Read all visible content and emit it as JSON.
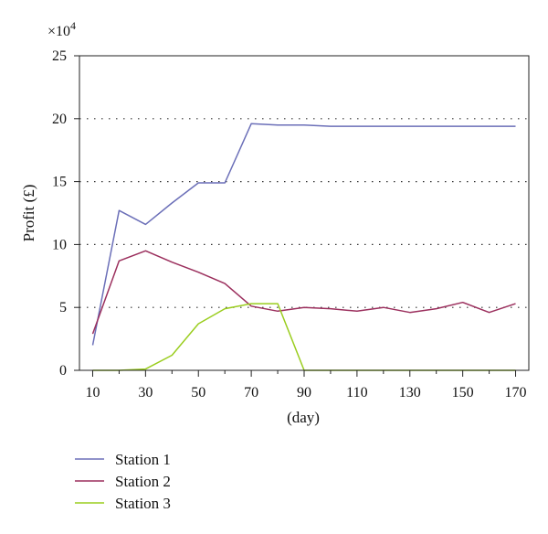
{
  "chart_data": {
    "type": "line",
    "title": "",
    "xlabel": "(day)",
    "ylabel": "Profit (£)",
    "y_multiplier": "×10",
    "y_multiplier_exp": "4",
    "xlim": [
      5,
      175
    ],
    "ylim": [
      0,
      25
    ],
    "x_ticks": [
      10,
      30,
      50,
      70,
      90,
      110,
      130,
      150,
      170
    ],
    "x_minor_ticks": [
      20,
      40,
      60,
      80,
      100,
      120,
      140,
      160
    ],
    "y_ticks": [
      0,
      5,
      10,
      15,
      20,
      25
    ],
    "grid": "dotted horizontal",
    "legend_position": "bottom-left",
    "x": [
      10,
      20,
      30,
      40,
      50,
      60,
      70,
      80,
      90,
      100,
      110,
      120,
      130,
      140,
      150,
      160,
      170
    ],
    "series": [
      {
        "name": "Station 1",
        "color": "#6b6fb8",
        "values": [
          2.0,
          12.7,
          11.6,
          13.3,
          14.9,
          14.9,
          19.6,
          19.5,
          19.5,
          19.4,
          19.4,
          19.4,
          19.4,
          19.4,
          19.4,
          19.4,
          19.4
        ]
      },
      {
        "name": "Station 2",
        "color": "#9b2f5d",
        "values": [
          2.9,
          8.7,
          9.5,
          8.6,
          7.8,
          6.9,
          5.1,
          4.7,
          5.0,
          4.9,
          4.7,
          5.0,
          4.6,
          4.9,
          5.4,
          4.6,
          5.3
        ]
      },
      {
        "name": "Station 3",
        "color": "#9acd1e",
        "values": [
          0.0,
          0.0,
          0.1,
          1.2,
          3.7,
          4.9,
          5.3,
          5.3,
          0.0,
          0.0,
          0.0,
          0.0,
          0.0,
          0.0,
          0.0,
          0.0,
          0.0
        ]
      }
    ]
  }
}
